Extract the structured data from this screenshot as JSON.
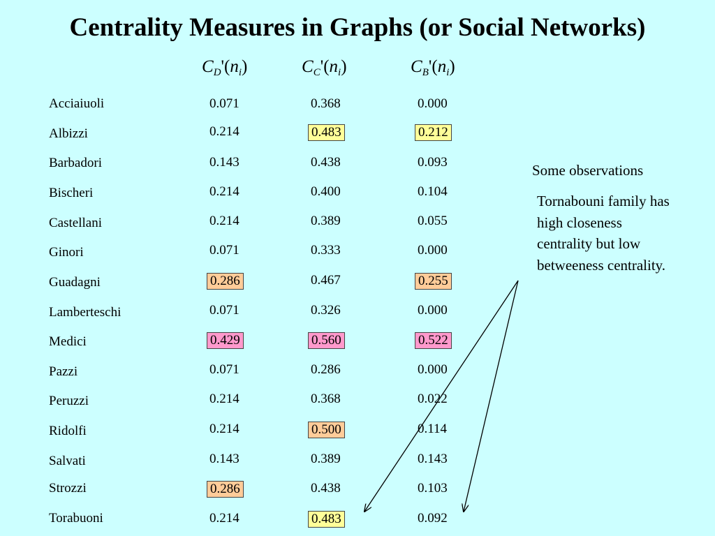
{
  "title": "Centrality Measures in Graphs (or Social Networks)",
  "columns": [
    {
      "symbol": "C",
      "sub": "D",
      "arg": "'(n",
      "argsub": "i",
      "close": ")"
    },
    {
      "symbol": "C",
      "sub": "C",
      "arg": "'(n",
      "argsub": "i",
      "close": ")"
    },
    {
      "symbol": "C",
      "sub": "B",
      "arg": "'(n",
      "argsub": "i",
      "close": ")"
    }
  ],
  "rows": [
    {
      "name": "Acciaiuoli",
      "cd": "0.071",
      "cc": "0.368",
      "cb": "0.000",
      "hl": [
        "",
        "",
        ""
      ]
    },
    {
      "name": "Albizzi",
      "cd": "0.214",
      "cc": "0.483",
      "cb": "0.212",
      "hl": [
        "",
        "yellow",
        "yellow"
      ]
    },
    {
      "name": "Barbadori",
      "cd": "0.143",
      "cc": "0.438",
      "cb": "0.093",
      "hl": [
        "",
        "",
        ""
      ]
    },
    {
      "name": "Bischeri",
      "cd": "0.214",
      "cc": "0.400",
      "cb": "0.104",
      "hl": [
        "",
        "",
        ""
      ]
    },
    {
      "name": "Castellani",
      "cd": "0.214",
      "cc": "0.389",
      "cb": "0.055",
      "hl": [
        "",
        "",
        ""
      ]
    },
    {
      "name": "Ginori",
      "cd": "0.071",
      "cc": "0.333",
      "cb": "0.000",
      "hl": [
        "",
        "",
        ""
      ]
    },
    {
      "name": "Guadagni",
      "cd": "0.286",
      "cc": "0.467",
      "cb": "0.255",
      "hl": [
        "orange",
        "",
        "orange"
      ]
    },
    {
      "name": "Lamberteschi",
      "cd": "0.071",
      "cc": "0.326",
      "cb": "0.000",
      "hl": [
        "",
        "",
        ""
      ]
    },
    {
      "name": "Medici",
      "cd": "0.429",
      "cc": "0.560",
      "cb": "0.522",
      "hl": [
        "pink",
        "pink",
        "pink"
      ]
    },
    {
      "name": "Pazzi",
      "cd": "0.071",
      "cc": "0.286",
      "cb": "0.000",
      "hl": [
        "",
        "",
        ""
      ]
    },
    {
      "name": "Peruzzi",
      "cd": "0.214",
      "cc": "0.368",
      "cb": "0.022",
      "hl": [
        "",
        "",
        ""
      ]
    },
    {
      "name": "Ridolfi",
      "cd": "0.214",
      "cc": "0.500",
      "cb": "0.114",
      "hl": [
        "",
        "orange",
        ""
      ]
    },
    {
      "name": "Salvati",
      "cd": "0.143",
      "cc": "0.389",
      "cb": "0.143",
      "hl": [
        "",
        "",
        ""
      ]
    },
    {
      "name": "Strozzi",
      "cd": "0.286",
      "cc": "0.438",
      "cb": "0.103",
      "hl": [
        "orange",
        "",
        ""
      ]
    },
    {
      "name": "Torabuoni",
      "cd": "0.214",
      "cc": "0.483",
      "cb": "0.092",
      "hl": [
        "",
        "yellow",
        ""
      ]
    }
  ],
  "observations": {
    "heading": "Some observations",
    "body": "Tornabouni family has high closeness centrality but low betweeness centrality."
  },
  "colors": {
    "background": "#ccffff",
    "yellow": "#ffff99",
    "orange": "#ffcc99",
    "pink": "#ff99cc"
  }
}
